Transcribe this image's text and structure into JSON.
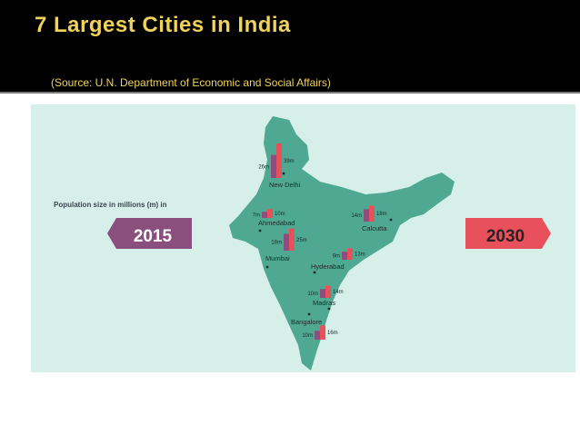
{
  "slide": {
    "title": "7 Largest Cities in India",
    "subtitle": "(Source: U.N. Department of Economic and Social Affairs)"
  },
  "chart_data": {
    "type": "bar",
    "title": "7 Largest Cities in India",
    "note": "Population size in millions (m) in",
    "units": "millions",
    "series": [
      {
        "name": "2015",
        "color": "#8a4f7d",
        "values": [
          26,
          7,
          14,
          19,
          9,
          10,
          10
        ]
      },
      {
        "name": "2030",
        "color": "#e8505b",
        "values": [
          39,
          10,
          18,
          25,
          13,
          14,
          16
        ]
      }
    ],
    "categories": [
      "New Delhi",
      "Ahmedabad",
      "Calcutta",
      "Mumbai",
      "Hyderabad",
      "Madras",
      "Bangalore"
    ],
    "labels_2015": [
      "26m",
      "7m",
      "14m",
      "19m",
      "9m",
      "10m",
      "10m"
    ],
    "labels_2030": [
      "39m",
      "10m",
      "18m",
      "25m",
      "13m",
      "14m",
      "16m"
    ],
    "legend_position": "left and right arrows"
  },
  "colors": {
    "header_bg": "#000000",
    "title_color": "#f1d25a",
    "map_fill": "#4fa891",
    "panel_bg": "#d7efe9",
    "color_2015": "#8a4f7d",
    "color_2030": "#e8505b"
  }
}
